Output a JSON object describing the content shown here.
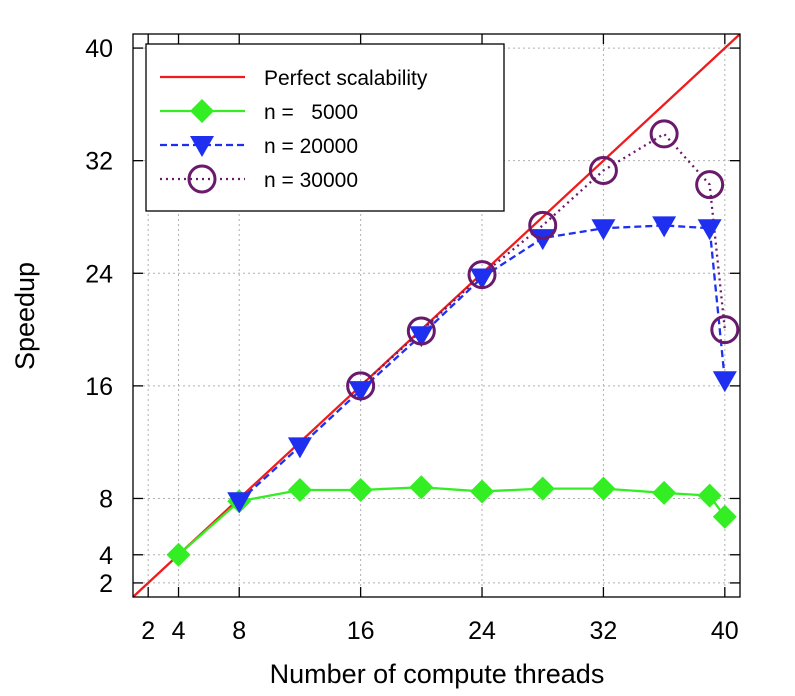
{
  "chart_data": {
    "type": "line",
    "xlabel": "Number of compute threads",
    "ylabel": "Speedup",
    "xlim": [
      1,
      41
    ],
    "ylim": [
      1,
      41
    ],
    "x_ticks": [
      2,
      4,
      8,
      16,
      24,
      32,
      40
    ],
    "y_ticks": [
      2,
      4,
      8,
      16,
      24,
      32,
      40
    ],
    "grid": true,
    "legend_position": "top-left",
    "series": [
      {
        "name": "Perfect scalability",
        "color": "#ee1c1c",
        "marker": "none",
        "line_style": "solid",
        "x": [
          1,
          41
        ],
        "y": [
          1,
          41
        ]
      },
      {
        "name": "n =   5000",
        "color": "#33ee22",
        "marker": "diamond",
        "line_style": "solid",
        "x": [
          4,
          8,
          12,
          16,
          20,
          24,
          28,
          32,
          36,
          39,
          40
        ],
        "y": [
          4.0,
          7.8,
          8.6,
          8.6,
          8.8,
          8.5,
          8.7,
          8.7,
          8.4,
          8.2,
          6.7
        ]
      },
      {
        "name": "n = 20000",
        "color": "#1f2ff0",
        "marker": "triangle-down",
        "line_style": "dashed",
        "x": [
          8,
          12,
          16,
          20,
          24,
          28,
          32,
          36,
          39,
          40
        ],
        "y": [
          7.8,
          11.7,
          15.7,
          19.6,
          23.7,
          26.5,
          27.2,
          27.4,
          27.2,
          16.4
        ]
      },
      {
        "name": "n = 30000",
        "color": "#6a1a6a",
        "marker": "circle",
        "line_style": "dotted",
        "x": [
          16,
          20,
          24,
          28,
          32,
          36,
          39,
          40
        ],
        "y": [
          16.0,
          19.9,
          23.9,
          27.4,
          31.3,
          33.9,
          30.3,
          20.0
        ]
      }
    ]
  }
}
